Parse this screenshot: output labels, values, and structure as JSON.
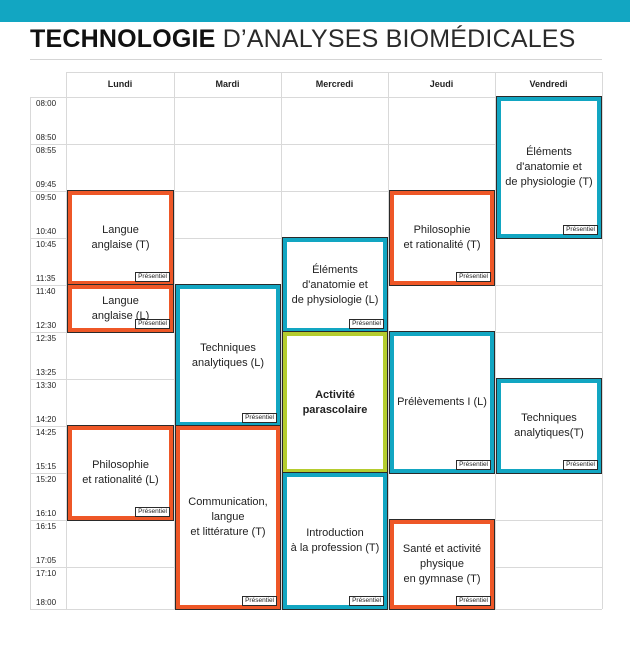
{
  "header": {
    "title_bold": "TECHNOLOGIE",
    "title_light": " D’ANALYSES BIOMÉDICALES"
  },
  "colors": {
    "banner": "#12a6c2",
    "orange": "#ee5727",
    "blue": "#12a6c2",
    "green": "#b5cc2e"
  },
  "days": [
    "Lundi",
    "Mardi",
    "Mercredi",
    "Jeudi",
    "Vendredi"
  ],
  "times": [
    "08:00",
    "08:50",
    "08:55",
    "09:45",
    "09:50",
    "10:40",
    "10:45",
    "11:35",
    "11:40",
    "12:30",
    "12:35",
    "13:25",
    "13:30",
    "14:20",
    "14:25",
    "15:15",
    "15:20",
    "16:10",
    "16:15",
    "17:05",
    "17:10",
    "18:00"
  ],
  "tag_label": "Présentiel",
  "courses": [
    {
      "day": "Lundi",
      "start": "09:50",
      "end": "11:35",
      "label": "Langue\nanglaise (T)",
      "color": "orange",
      "tag": true
    },
    {
      "day": "Lundi",
      "start": "11:40",
      "end": "12:30",
      "label": "Langue\nanglaise (L)",
      "color": "orange",
      "tag": true
    },
    {
      "day": "Lundi",
      "start": "14:25",
      "end": "16:10",
      "label": "Philosophie\net rationalité (L)",
      "color": "orange",
      "tag": true
    },
    {
      "day": "Mardi",
      "start": "11:40",
      "end": "14:20",
      "label": "Techniques\nanalytiques (L)",
      "color": "blue",
      "tag": true
    },
    {
      "day": "Mardi",
      "start": "14:25",
      "end": "18:00",
      "label": "Communication,\nlangue\net littérature (T)",
      "color": "orange",
      "tag": true
    },
    {
      "day": "Mercredi",
      "start": "10:45",
      "end": "12:30",
      "label": "Éléments\nd'anatomie et\nde physiologie (L)",
      "color": "blue",
      "tag": true
    },
    {
      "day": "Mercredi",
      "start": "12:35",
      "end": "15:15",
      "label": "Activité\nparascolaire",
      "color": "green",
      "tag": false
    },
    {
      "day": "Mercredi",
      "start": "15:20",
      "end": "18:00",
      "label": "Introduction\nà la profession (T)",
      "color": "blue",
      "tag": true
    },
    {
      "day": "Jeudi",
      "start": "09:50",
      "end": "11:35",
      "label": "Philosophie\net rationalité (T)",
      "color": "orange",
      "tag": true
    },
    {
      "day": "Jeudi",
      "start": "12:35",
      "end": "15:15",
      "label": "Prélèvements I (L)",
      "color": "blue",
      "tag": true
    },
    {
      "day": "Jeudi",
      "start": "16:15",
      "end": "18:00",
      "label": "Santé et activité\nphysique\nen gymnase (T)",
      "color": "orange",
      "tag": true
    },
    {
      "day": "Vendredi",
      "start": "08:00",
      "end": "10:40",
      "label": "Éléments\nd'anatomie et\nde physiologie (T)",
      "color": "blue",
      "tag": true
    },
    {
      "day": "Vendredi",
      "start": "13:30",
      "end": "15:15",
      "label": "Techniques\nanalytiques(T)",
      "color": "blue",
      "tag": true
    }
  ]
}
